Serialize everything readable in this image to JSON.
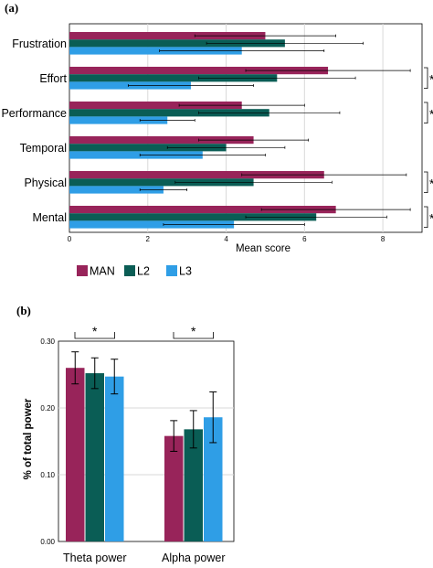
{
  "colors": {
    "MAN": "#98245a",
    "L2": "#0a5d55",
    "L3": "#2f9ee6",
    "grid": "#d9d9d9"
  },
  "chart_data": [
    {
      "panel_label": "(a)",
      "type": "bar",
      "orientation": "horizontal",
      "categories": [
        "Frustration",
        "Effort",
        "Performance",
        "Temporal",
        "Physical",
        "Mental"
      ],
      "series": [
        {
          "name": "MAN",
          "values": [
            5.0,
            6.6,
            4.4,
            4.7,
            6.5,
            6.8
          ],
          "err": [
            1.8,
            2.1,
            1.6,
            1.4,
            2.1,
            1.9
          ]
        },
        {
          "name": "L2",
          "values": [
            5.5,
            5.3,
            5.1,
            4.0,
            4.7,
            6.3
          ],
          "err": [
            2.0,
            2.0,
            1.8,
            1.5,
            2.0,
            1.8
          ]
        },
        {
          "name": "L3",
          "values": [
            4.4,
            3.1,
            2.5,
            3.4,
            2.4,
            4.2
          ],
          "err": [
            2.1,
            1.6,
            0.7,
            1.6,
            0.6,
            1.8
          ]
        }
      ],
      "xlabel": "Mean score",
      "xlim": [
        0,
        9
      ],
      "xticks": [
        "0",
        "2",
        "4",
        "6",
        "8"
      ],
      "grid": "vertical",
      "significance": {
        "marker": "*",
        "categories": [
          "Effort",
          "Performance",
          "Physical",
          "Mental"
        ]
      },
      "legend_position": "bottom-left"
    },
    {
      "panel_label": "(b)",
      "type": "bar",
      "categories": [
        "Theta power",
        "Alpha power"
      ],
      "series": [
        {
          "name": "MAN",
          "values": [
            0.26,
            0.158
          ],
          "err": [
            0.024,
            0.023
          ]
        },
        {
          "name": "L2",
          "values": [
            0.252,
            0.168
          ],
          "err": [
            0.023,
            0.028
          ]
        },
        {
          "name": "L3",
          "values": [
            0.247,
            0.186
          ],
          "err": [
            0.026,
            0.038
          ]
        }
      ],
      "ylabel": "% of total power",
      "ylim": [
        0,
        0.3
      ],
      "yticks": [
        "0.00",
        "0.10",
        "0.20",
        "0.30"
      ],
      "grid": "horizontal",
      "significance": {
        "marker": "*",
        "categories": [
          "Theta power",
          "Alpha power"
        ]
      }
    }
  ]
}
